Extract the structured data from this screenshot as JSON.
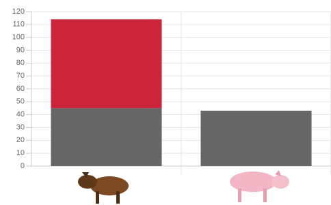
{
  "chart_data": {
    "type": "stacked-bar",
    "categories": [
      null,
      null
    ],
    "series": [
      {
        "color": "#666666",
        "values": [
          45,
          43
        ]
      },
      {
        "color": "#cc2439",
        "values": [
          69,
          0
        ]
      }
    ],
    "ylim": [
      0,
      120
    ],
    "yticks": [
      0,
      10,
      20,
      30,
      40,
      50,
      60,
      70,
      80,
      90,
      100,
      110,
      120
    ],
    "grid": true
  }
}
